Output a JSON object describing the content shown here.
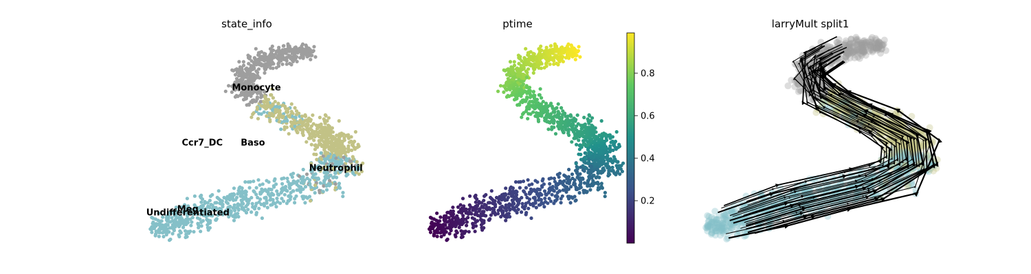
{
  "chart_data": [
    {
      "type": "scatter",
      "title": "state_info",
      "legend": "on data",
      "colors": {
        "Monocyte": "#9e9e9e",
        "Neutrophil": "#c2c286",
        "Undifferentiated": "#85c0c8",
        "Baso": "#c2c286",
        "Ccr7_DC": "#9e9e9e",
        "Meg": "#85c0c8"
      },
      "labels": [
        {
          "text": "Monocyte",
          "x": -0.1,
          "y": 1.22
        },
        {
          "text": "Ccr7_DC",
          "x": -0.85,
          "y": 0.35
        },
        {
          "text": "Baso",
          "x": -0.15,
          "y": 0.35
        },
        {
          "text": "Neutrophil",
          "x": 1.0,
          "y": -0.05
        },
        {
          "text": "Meg",
          "x": -1.05,
          "y": -0.7
        },
        {
          "text": "Undifferentiated",
          "x": -1.05,
          "y": -0.75
        }
      ]
    },
    {
      "type": "scatter",
      "title": "ptime",
      "colormap": "viridis",
      "colorbar": {
        "min": 0.0,
        "max": 0.99,
        "ticks": [
          "0.2",
          "0.4",
          "0.6",
          "0.8"
        ],
        "tick_values": [
          0.2,
          0.4,
          0.6,
          0.8
        ]
      }
    },
    {
      "type": "scatter",
      "title": "larryMult split1",
      "overlay": "velocity streamlines",
      "streamline_color": "#000000"
    }
  ]
}
